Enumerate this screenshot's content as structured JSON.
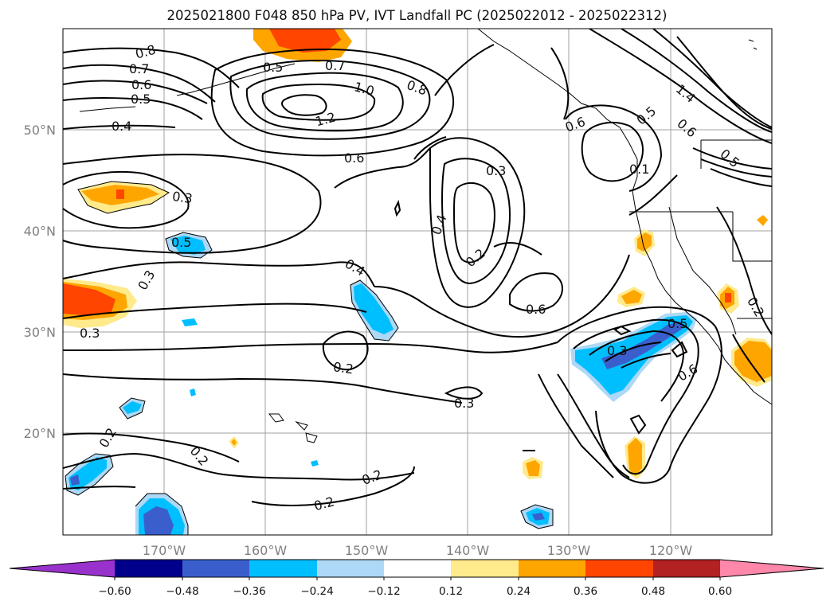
{
  "title": "2025021800 F048 850 hPa PV, IVT Landfall PC (2025022012 - 2025022312)",
  "map": {
    "lon_ticks": [
      "170°W",
      "160°W",
      "150°W",
      "140°W",
      "130°W",
      "120°W"
    ],
    "lat_ticks": [
      "50°N",
      "40°N",
      "30°N",
      "20°N"
    ],
    "contour_labels": [
      "0.8",
      "0.7",
      "0.6",
      "0.5",
      "0.4",
      "0.5",
      "0.7",
      "1.2",
      "1.0",
      "0.8",
      "0.6",
      "0.3",
      "0.5",
      "0.3",
      "0.3",
      "0.4",
      "0.3",
      "0.4",
      "0.2",
      "0.6",
      "0.2",
      "0.3",
      "0.2",
      "0.2",
      "0.2",
      "0.2",
      "0.6",
      "0.5",
      "0.1",
      "0.3",
      "0.5",
      "0.6",
      "0.2",
      "0.6",
      "0.5",
      "1.4"
    ]
  },
  "colorbar": {
    "ticks": [
      "−0.60",
      "−0.48",
      "−0.36",
      "−0.24",
      "−0.12",
      "0.12",
      "0.24",
      "0.36",
      "0.48",
      "0.60"
    ],
    "colors": [
      "#9932cc",
      "#00008b",
      "#3a5fcd",
      "#00bfff",
      "#add8f6",
      "#ffffff",
      "#ffea8c",
      "#ffa500",
      "#ff4500",
      "#b22222",
      "#ff88aa"
    ]
  }
}
